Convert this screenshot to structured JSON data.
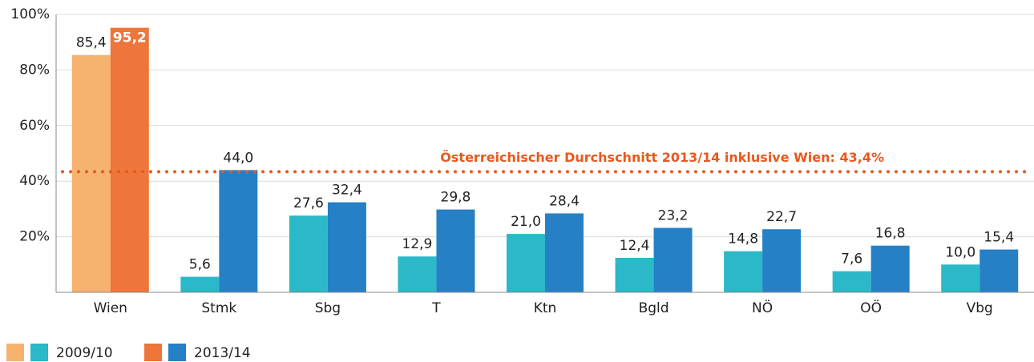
{
  "chart_data": {
    "type": "bar",
    "categories": [
      "Wien",
      "Stmk",
      "Sbg",
      "T",
      "Ktn",
      "Bgld",
      "NÖ",
      "OÖ",
      "Vbg"
    ],
    "series": [
      {
        "name": "2009/10",
        "colors": [
          "#f6b36f",
          "#2bb8c8",
          "#2bb8c8",
          "#2bb8c8",
          "#2bb8c8",
          "#2bb8c8",
          "#2bb8c8",
          "#2bb8c8",
          "#2bb8c8"
        ],
        "values": [
          85.4,
          5.6,
          27.6,
          12.9,
          21.0,
          12.4,
          14.8,
          7.6,
          10.0
        ],
        "value_labels": [
          "85,4",
          "5,6",
          "27,6",
          "12,9",
          "21,0",
          "12,4",
          "14,8",
          "7,6",
          "10,0"
        ]
      },
      {
        "name": "2013/14",
        "colors": [
          "#ee763a",
          "#2580c6",
          "#2580c6",
          "#2580c6",
          "#2580c6",
          "#2580c6",
          "#2580c6",
          "#2580c6",
          "#2580c6"
        ],
        "values": [
          95.2,
          44.0,
          32.4,
          29.8,
          28.4,
          23.2,
          22.7,
          16.8,
          15.4
        ],
        "value_labels": [
          "95,2",
          "44,0",
          "32,4",
          "29,8",
          "28,4",
          "23,2",
          "22,7",
          "16,8",
          "15,4"
        ]
      }
    ],
    "ylim": [
      0,
      100
    ],
    "yticks": [
      {
        "value": 20,
        "label": "20%"
      },
      {
        "value": 40,
        "label": "40%"
      },
      {
        "value": 60,
        "label": "60%"
      },
      {
        "value": 80,
        "label": "80%"
      },
      {
        "value": 100,
        "label": "100%"
      }
    ],
    "grid": true,
    "reference_line": {
      "value": 43.4,
      "label": "Österreichischer Durchschnitt 2013/14 inklusive Wien: 43,4%",
      "color": "#e9581e"
    },
    "legend": "bottom-left"
  }
}
